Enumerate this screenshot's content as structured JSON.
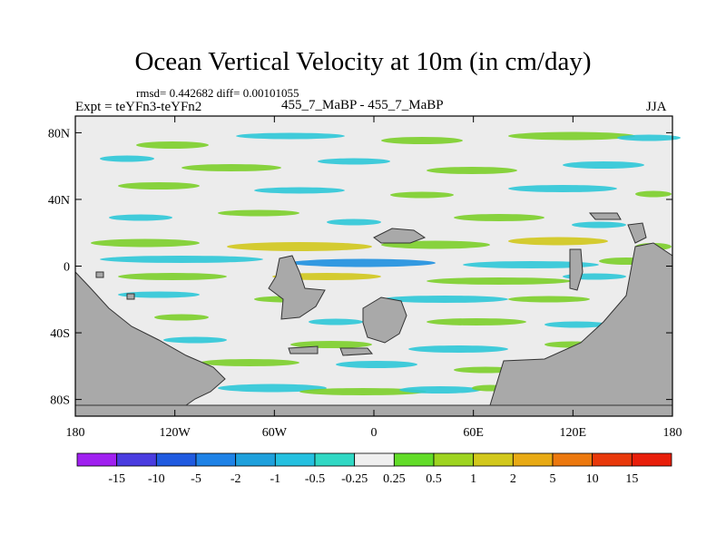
{
  "title": "Ocean Vertical Velocity at 10m (in cm/day)",
  "stats": "rmsd= 0.442682 diff= 0.00101055",
  "expt_label": "Expt = teYFn3-teYFn2",
  "center_label": "455_7_MaBP - 455_7_MaBP",
  "season": "JJA",
  "axes": {
    "y_ticks": [
      {
        "label": "80N",
        "value": 80
      },
      {
        "label": "40N",
        "value": 40
      },
      {
        "label": "0",
        "value": 0
      },
      {
        "label": "40S",
        "value": -40
      },
      {
        "label": "80S",
        "value": -80
      }
    ],
    "x_ticks": [
      {
        "label": "180",
        "value": -180
      },
      {
        "label": "120W",
        "value": -120
      },
      {
        "label": "60W",
        "value": -60
      },
      {
        "label": "0",
        "value": 0
      },
      {
        "label": "60E",
        "value": 60
      },
      {
        "label": "120E",
        "value": 120
      },
      {
        "label": "180",
        "value": 180
      }
    ],
    "lon_range": [
      -180,
      180
    ],
    "lat_range": [
      -90,
      90
    ]
  },
  "colorbar": {
    "labels": [
      "-15",
      "-10",
      "-5",
      "-2",
      "-1",
      "-0.5",
      "-0.25",
      "0.25",
      "0.5",
      "1",
      "2",
      "5",
      "10",
      "15"
    ],
    "colors": [
      "#a020f0",
      "#4a3ce0",
      "#1f5ae0",
      "#1e82e6",
      "#1ea0dc",
      "#24c0e0",
      "#30d8c4",
      "#efefef",
      "#62dc28",
      "#9ed420",
      "#d2c81c",
      "#e8aa14",
      "#ec780e",
      "#e8380a",
      "#e81e0a"
    ]
  },
  "colors": {
    "land": "#a9a9a9",
    "ocean_background": "#ececec",
    "positive_green": "#7ccf2a",
    "positive_yellow": "#d2c81c",
    "negative_cyan": "#2ec8d8",
    "negative_blue": "#1e90e0"
  }
}
